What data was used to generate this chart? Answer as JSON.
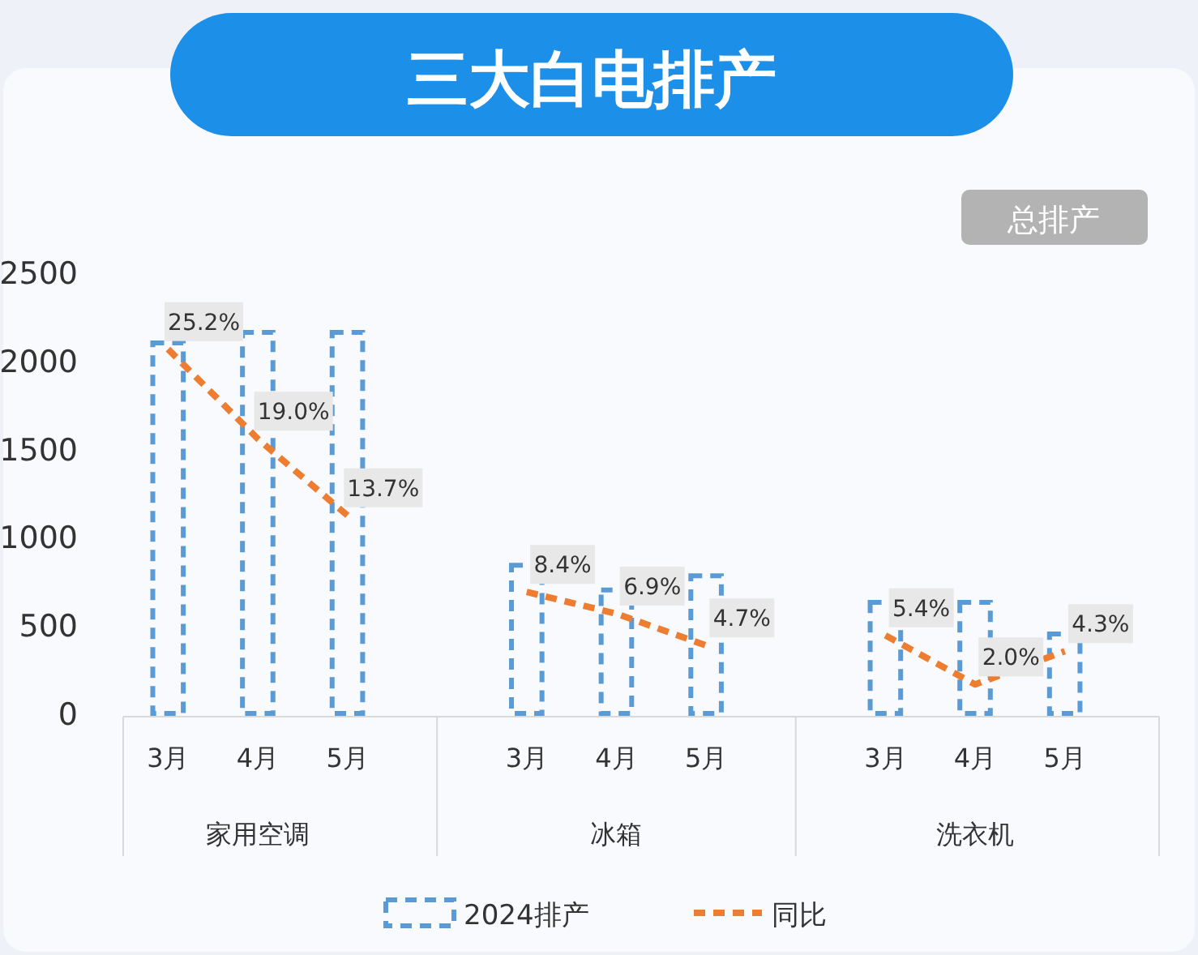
{
  "chart_data": {
    "type": "bar",
    "title": "三大白电排产",
    "categories": [
      "3月",
      "4月",
      "5月",
      null,
      "3月",
      "4月",
      "5月",
      null,
      "3月",
      "4月",
      "5月"
    ],
    "annotations": [
      "总排产",
      "家用空调",
      "冰箱",
      "洗衣机"
    ],
    "series": [
      {
        "name": "2024排产",
        "color": "#5b9bd5",
        "line_style": "dashed",
        "values": [
          2100,
          2160,
          2160,
          null,
          840,
          700,
          780,
          null,
          630,
          630,
          450
        ]
      },
      {
        "name": "同比",
        "type": "line",
        "axis": "y2",
        "color": "#ed7d31",
        "line_style": "dashed",
        "marker": "none",
        "values": [
          25.2,
          19.0,
          13.7,
          null,
          8.4,
          6.9,
          4.7,
          null,
          5.4,
          2.0,
          4.3
        ],
        "value_labels": [
          "25.2%",
          "19.0%",
          "13.7%",
          null,
          "8.4%",
          "6.9%",
          "4.7%",
          null,
          "5.4%",
          "2.0%",
          "4.3%"
        ]
      }
    ],
    "ylim": [
      0,
      2500
    ],
    "yticks": [
      0,
      500,
      1000,
      1500,
      2000,
      2500
    ],
    "grid": false,
    "legend": "bottom"
  }
}
